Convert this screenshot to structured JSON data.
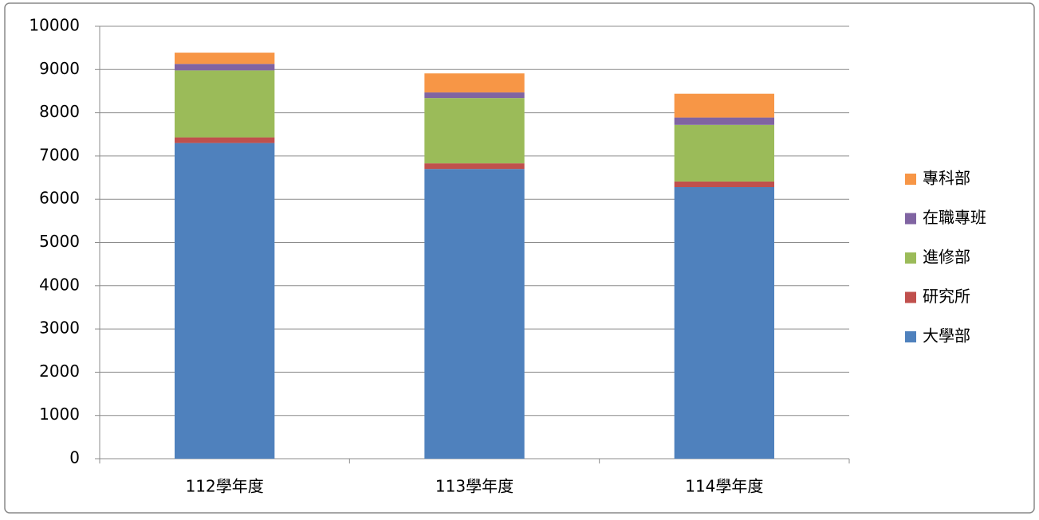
{
  "chart_data": {
    "type": "stacked_bar",
    "categories": [
      "112學年度",
      "113學年度",
      "114學年度"
    ],
    "series": [
      {
        "name": "大學部",
        "color": "#4f81bd",
        "values": [
          7300,
          6700,
          6280
        ]
      },
      {
        "name": "研究所",
        "color": "#c0504d",
        "values": [
          130,
          130,
          130
        ]
      },
      {
        "name": "進修部",
        "color": "#9bbb59",
        "values": [
          1550,
          1510,
          1310
        ]
      },
      {
        "name": "在職專班",
        "color": "#8064a2",
        "values": [
          150,
          130,
          170
        ]
      },
      {
        "name": "專科部",
        "color": "#f79646",
        "values": [
          260,
          440,
          550
        ]
      }
    ],
    "ylim": [
      0,
      10000
    ],
    "yticks": [
      0,
      1000,
      2000,
      3000,
      4000,
      5000,
      6000,
      7000,
      8000,
      9000,
      10000
    ],
    "grid": true,
    "legend": "right"
  }
}
